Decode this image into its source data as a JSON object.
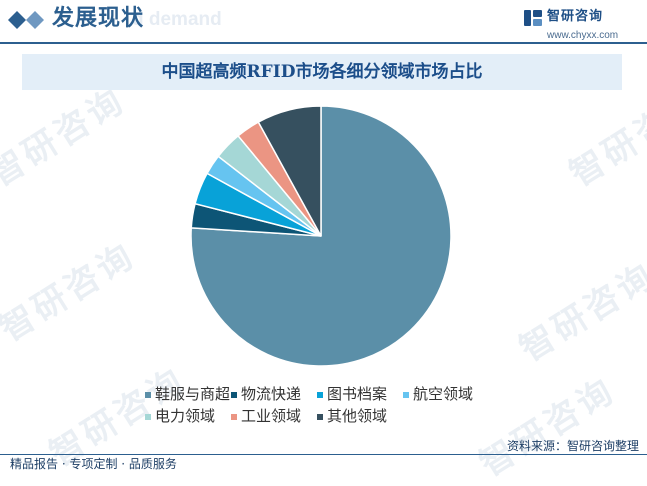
{
  "header": {
    "section_title": "发展现状",
    "watermark_text": "d demand",
    "brand_name": "智研咨询",
    "brand_url": "www.chyxx.com"
  },
  "background_watermark": "智研咨询",
  "colors": {
    "primary": "#2c5f8f",
    "title_band": "#e3eef8",
    "title_text": "#1c4e8a"
  },
  "chart_data": {
    "type": "pie",
    "title": "中国超高频RFID市场各细分领域市场占比",
    "start_angle_deg": 0,
    "direction": "clockwise",
    "categories": [
      "鞋服与商超",
      "物流快递",
      "图书档案",
      "航空领域",
      "电力领域",
      "工业领域",
      "其他领域"
    ],
    "values": [
      76,
      3,
      4,
      2.5,
      3.5,
      3,
      8
    ],
    "unit": "%",
    "colors": [
      "#5b8fa8",
      "#0d5576",
      "#08a2d8",
      "#66c4f0",
      "#a5d7d6",
      "#eb9583",
      "#36505f"
    ],
    "legend": {
      "position": "bottom",
      "rows": [
        [
          "鞋服与商超",
          "物流快递",
          "图书档案",
          "航空领域"
        ],
        [
          "电力领域",
          "工业领域",
          "其他领域"
        ]
      ]
    }
  },
  "footer": {
    "source_label": "资料来源：",
    "source_value": "智研咨询整理",
    "tagline": "精品报告 · 专项定制 · 品质服务"
  }
}
